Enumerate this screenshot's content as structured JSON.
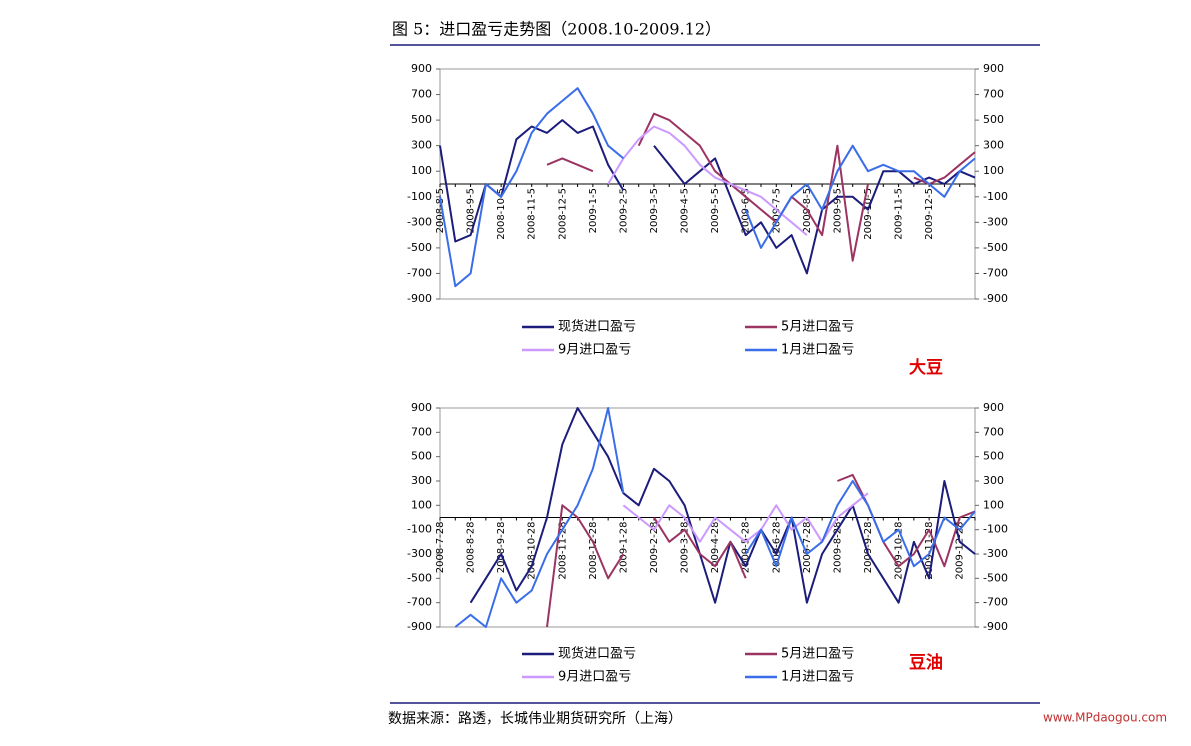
{
  "title": "图 5：进口盈亏走势图（2008.10-2009.12）",
  "source": "数据来源：路透，长城伟业期货研究所（上海）",
  "watermark": "www.MPdaogou.com",
  "chart_data": [
    {
      "type": "line",
      "label": "大豆",
      "categories": [
        "2008-8-5",
        null,
        "2008-9-5",
        null,
        "2008-10-5",
        null,
        "2008-11-5",
        null,
        "2008-12-5",
        null,
        "2009-1-5",
        null,
        "2009-2-5",
        null,
        "2009-3-5",
        null,
        "2009-4-5",
        null,
        "2009-5-5",
        null,
        "2009-6-5",
        null,
        "2009-7-5",
        null,
        "2009-8-5",
        null,
        "2009-9-5",
        null,
        "2009-10-5",
        null,
        "2009-11-5",
        null,
        "2009-12-5",
        null,
        null,
        null
      ],
      "ylim": [
        -900,
        900
      ],
      "yticks": [
        -900,
        -700,
        -500,
        -300,
        -100,
        100,
        300,
        500,
        700,
        900
      ],
      "y2lim": [
        -900,
        900
      ],
      "y2ticks": [
        -900,
        -700,
        -500,
        -300,
        -100,
        100,
        300,
        500,
        700,
        900
      ],
      "series": [
        {
          "name": "现货进口盈亏",
          "color": "#1c1c7c",
          "values": [
            300,
            -450,
            -400,
            0,
            -100,
            350,
            450,
            400,
            500,
            400,
            450,
            150,
            -50,
            null,
            300,
            150,
            0,
            100,
            200,
            -100,
            -400,
            -300,
            -500,
            -400,
            -700,
            -200,
            -100,
            -100,
            -200,
            100,
            100,
            0,
            50,
            0,
            100,
            50
          ]
        },
        {
          "name": "5月进口盈亏",
          "color": "#9c3462",
          "values": [
            null,
            null,
            null,
            null,
            null,
            null,
            null,
            150,
            200,
            150,
            100,
            null,
            null,
            300,
            550,
            500,
            400,
            300,
            100,
            0,
            -100,
            -200,
            -300,
            -100,
            -200,
            -400,
            300,
            -600,
            0,
            null,
            null,
            50,
            0,
            50,
            150,
            250
          ]
        },
        {
          "name": "9月进口盈亏",
          "color": "#cc99ff",
          "values": [
            null,
            null,
            null,
            null,
            null,
            null,
            null,
            null,
            null,
            null,
            null,
            0,
            200,
            350,
            450,
            400,
            300,
            150,
            50,
            0,
            -50,
            -100,
            -200,
            -300,
            -400,
            null,
            null,
            null,
            null,
            null,
            null,
            null,
            null,
            null,
            null,
            null
          ]
        },
        {
          "name": "1月进口盈亏",
          "color": "#3a6ee8",
          "values": [
            -100,
            -800,
            -700,
            0,
            -100,
            100,
            400,
            550,
            650,
            750,
            550,
            300,
            200,
            null,
            null,
            null,
            null,
            null,
            null,
            null,
            -200,
            -500,
            -300,
            -100,
            0,
            -200,
            100,
            300,
            100,
            150,
            100,
            100,
            0,
            -100,
            100,
            200
          ]
        }
      ]
    },
    {
      "type": "line",
      "label": "豆油",
      "categories": [
        "2008-7-28",
        null,
        "2008-8-28",
        null,
        "2008-9-28",
        null,
        "2008-10-28",
        null,
        "2008-11-28",
        null,
        "2008-12-28",
        null,
        "2009-1-28",
        null,
        "2009-2-28",
        null,
        "2009-3-28",
        null,
        "2009-4-28",
        null,
        "2009-5-28",
        null,
        "2009-6-28",
        null,
        "2009-7-28",
        null,
        "2009-8-28",
        null,
        "2009-9-28",
        null,
        "2009-10-28",
        null,
        "2009-11-28",
        null,
        "2009-12-28",
        null
      ],
      "ylim": [
        -900,
        900
      ],
      "yticks": [
        -900,
        -700,
        -500,
        -300,
        -100,
        100,
        300,
        500,
        700,
        900
      ],
      "y2lim": [
        -900,
        900
      ],
      "y2ticks": [
        -900,
        -700,
        -500,
        -300,
        -100,
        100,
        300,
        500,
        700,
        900
      ],
      "series": [
        {
          "name": "现货进口盈亏",
          "color": "#1c1c7c",
          "values": [
            null,
            null,
            -700,
            -500,
            -300,
            -600,
            -400,
            0,
            600,
            900,
            700,
            500,
            200,
            100,
            400,
            300,
            100,
            -300,
            -700,
            -200,
            -400,
            -100,
            -300,
            0,
            -700,
            -300,
            -100,
            100,
            -300,
            -500,
            -700,
            -200,
            -500,
            300,
            -200,
            -300
          ]
        },
        {
          "name": "5月进口盈亏",
          "color": "#9c3462",
          "values": [
            null,
            null,
            null,
            null,
            null,
            null,
            null,
            -900,
            100,
            0,
            -200,
            -500,
            -300,
            null,
            0,
            -200,
            -100,
            -300,
            -400,
            -200,
            -500,
            null,
            null,
            null,
            null,
            null,
            300,
            350,
            100,
            -200,
            -400,
            -300,
            -100,
            -400,
            0,
            50
          ]
        },
        {
          "name": "9月进口盈亏",
          "color": "#cc99ff",
          "values": [
            null,
            null,
            null,
            null,
            null,
            null,
            null,
            null,
            null,
            null,
            null,
            null,
            100,
            0,
            -100,
            100,
            0,
            -200,
            0,
            -100,
            -200,
            -100,
            100,
            -100,
            0,
            -200,
            0,
            100,
            200,
            null,
            null,
            null,
            null,
            null,
            null,
            null
          ]
        },
        {
          "name": "1月进口盈亏",
          "color": "#3a6ee8",
          "values": [
            null,
            -900,
            -800,
            -900,
            -500,
            -700,
            -600,
            -300,
            -100,
            100,
            400,
            900,
            200,
            null,
            null,
            null,
            null,
            null,
            null,
            null,
            -300,
            -100,
            -400,
            0,
            -300,
            -200,
            100,
            300,
            100,
            -200,
            -100,
            -400,
            -300,
            0,
            -100,
            50
          ]
        }
      ]
    }
  ]
}
